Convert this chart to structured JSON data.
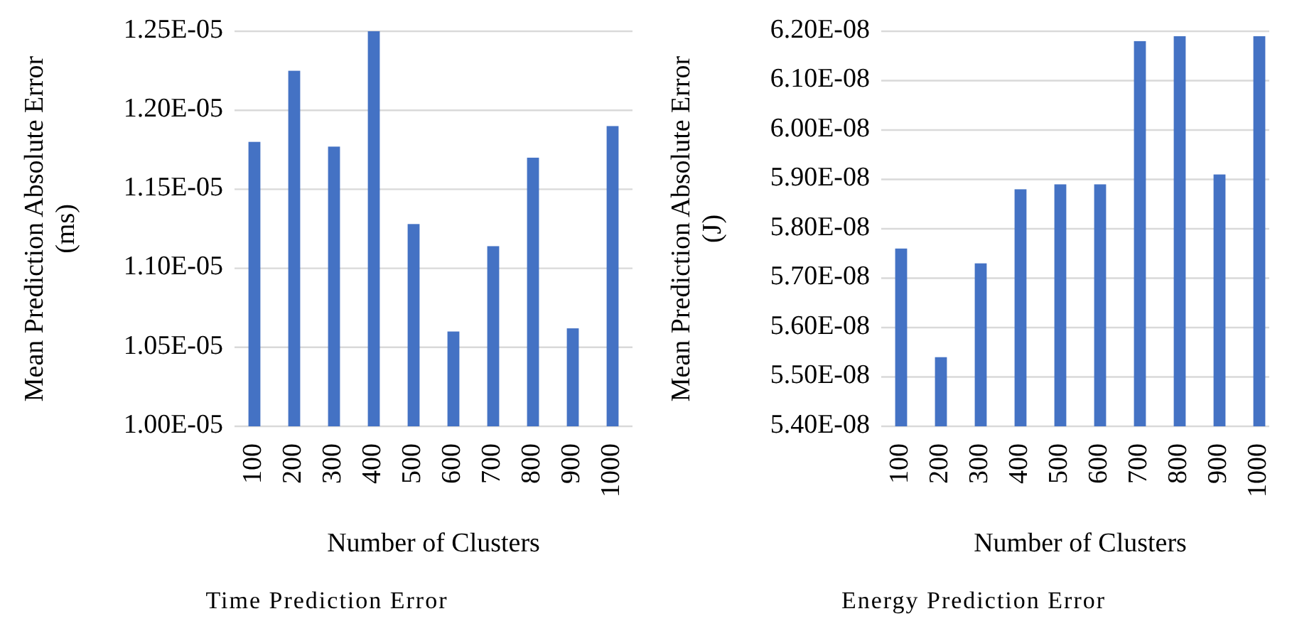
{
  "chart_data": [
    {
      "type": "bar",
      "title": "Time Prediction Error",
      "xlabel": "Number of Clusters",
      "ylabel": "Mean Prediction Absolute Error (ms)",
      "categories": [
        "100",
        "200",
        "300",
        "400",
        "500",
        "600",
        "700",
        "800",
        "900",
        "1000"
      ],
      "values": [
        1.18e-05,
        1.225e-05,
        1.177e-05,
        1.25e-05,
        1.128e-05,
        1.06e-05,
        1.114e-05,
        1.17e-05,
        1.062e-05,
        1.19e-05
      ],
      "color": "#4472c4",
      "ylim": [
        1e-05,
        1.25e-05
      ],
      "yticks": [
        {
          "value": 1e-05,
          "label": "1.00E-05"
        },
        {
          "value": 1.05e-05,
          "label": "1.05E-05"
        },
        {
          "value": 1.1e-05,
          "label": "1.10E-05"
        },
        {
          "value": 1.15e-05,
          "label": "1.15E-05"
        },
        {
          "value": 1.2e-05,
          "label": "1.20E-05"
        },
        {
          "value": 1.25e-05,
          "label": "1.25E-05"
        }
      ],
      "grid": "y"
    },
    {
      "type": "bar",
      "title": "Energy Prediction Error",
      "xlabel": "Number of Clusters",
      "ylabel": "Mean Prediction Absolute Error (J)",
      "categories": [
        "100",
        "200",
        "300",
        "400",
        "500",
        "600",
        "700",
        "800",
        "900",
        "1000"
      ],
      "values": [
        5.76e-08,
        5.54e-08,
        5.73e-08,
        5.88e-08,
        5.89e-08,
        5.89e-08,
        6.18e-08,
        6.19e-08,
        5.91e-08,
        6.19e-08
      ],
      "color": "#4472c4",
      "ylim": [
        5.4e-08,
        6.2e-08
      ],
      "yticks": [
        {
          "value": 5.4e-08,
          "label": "5.40E-08"
        },
        {
          "value": 5.5e-08,
          "label": "5.50E-08"
        },
        {
          "value": 5.6e-08,
          "label": "5.60E-08"
        },
        {
          "value": 5.7e-08,
          "label": "5.70E-08"
        },
        {
          "value": 5.8e-08,
          "label": "5.80E-08"
        },
        {
          "value": 5.9e-08,
          "label": "5.90E-08"
        },
        {
          "value": 6e-08,
          "label": "6.00E-08"
        },
        {
          "value": 6.1e-08,
          "label": "6.10E-08"
        },
        {
          "value": 6.2e-08,
          "label": "6.20E-08"
        }
      ],
      "grid": "y"
    }
  ]
}
